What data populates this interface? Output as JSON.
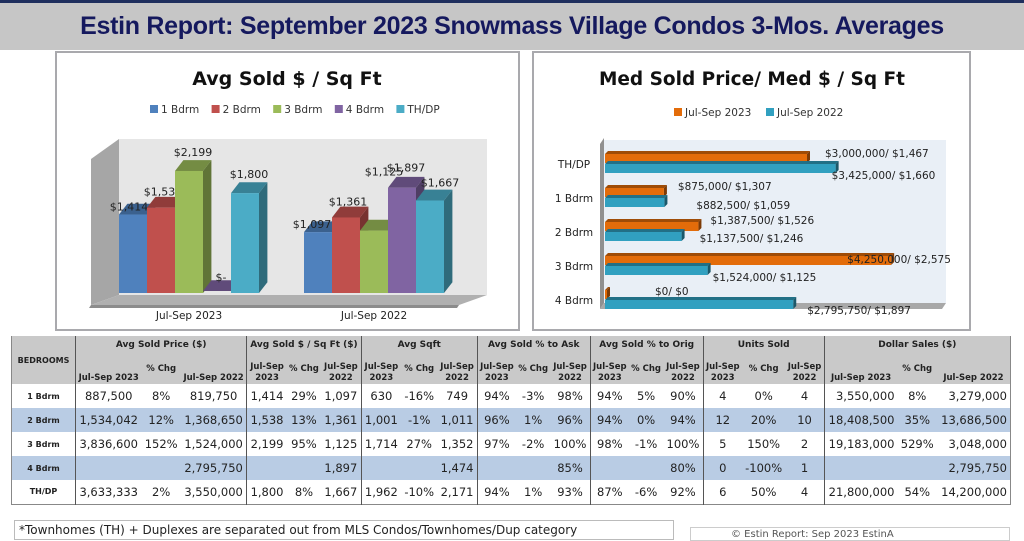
{
  "page": {
    "title": "Estin Report:  September 2023 Snowmass Village Condos 3-Mos. Averages",
    "footnote": "*Townhomes (TH) + Duplexes are separated out from MLS Condos/Townhomes/Dup category",
    "copyright": "© Estin Report: Sep 2023    EstinA"
  },
  "chart_data": [
    {
      "type": "bar",
      "title": "Avg Sold $ / Sq Ft",
      "categories": [
        "Jul-Sep 2023",
        "Jul-Sep 2022"
      ],
      "legend_position": "top",
      "series": [
        {
          "name": "1 Bdrm",
          "color": "#4f81bd",
          "values": [
            1414,
            1097
          ],
          "labels": [
            "$1,414",
            "$1,097"
          ]
        },
        {
          "name": "2 Bdrm",
          "color": "#c0504d",
          "values": [
            1538,
            1361
          ],
          "labels": [
            "$1,538",
            "$1,361"
          ]
        },
        {
          "name": "3 Bdrm",
          "color": "#9bbb59",
          "values": [
            2199,
            1125
          ],
          "labels": [
            "$2,199",
            "$1,125"
          ]
        },
        {
          "name": "4 Bdrm",
          "color": "#8064a2",
          "values": [
            0,
            1897
          ],
          "labels": [
            "$-",
            "$1,897"
          ]
        },
        {
          "name": "TH/DP",
          "color": "#4bacc6",
          "values": [
            1800,
            1667
          ],
          "labels": [
            "$1,800",
            "$1,667"
          ]
        }
      ],
      "ylim": [
        0,
        2200
      ],
      "grid": false
    },
    {
      "type": "bar",
      "orientation": "horizontal",
      "title": "Med Sold Price/ Med $ / Sq Ft",
      "categories": [
        "TH/DP",
        "1 Bdrm",
        "2 Bdrm",
        "3 Bdrm",
        "4 Bdrm"
      ],
      "legend_position": "top",
      "series": [
        {
          "name": "Jul-Sep 2023",
          "color": "#e36c0a",
          "values": [
            3000000,
            875000,
            1387500,
            4250000,
            0
          ],
          "labels": [
            "$3,000,000/ $1,467",
            "$875,000/ $1,307",
            "$1,387,500/ $1,526",
            "$4,250,000/ $2,575",
            "$0/ $0"
          ]
        },
        {
          "name": "Jul-Sep 2022",
          "color": "#31a0c0",
          "values": [
            3425000,
            882500,
            1137500,
            1524000,
            2795750
          ],
          "labels": [
            "$3,425,000/ $1,660",
            "$882,500/ $1,059",
            "$1,137,500/ $1,246",
            "$1,524,000/ $1,125",
            "$2,795,750/ $1,897"
          ]
        }
      ],
      "xlim": [
        0,
        5000000
      ],
      "grid": false
    }
  ],
  "table": {
    "row_header": "BEDROOMS",
    "groups": [
      {
        "label": "Avg Sold Price ($)",
        "subs": [
          "Jul-Sep 2023",
          "% Chg",
          "Jul-Sep 2022"
        ]
      },
      {
        "label": "Avg Sold $ / Sq Ft ($)",
        "subs": [
          "Jul-Sep 2023",
          "% Chg",
          "Jul-Sep 2022"
        ]
      },
      {
        "label": "Avg Sqft",
        "subs": [
          "Jul-Sep 2023",
          "% Chg",
          "Jul-Sep 2022"
        ]
      },
      {
        "label": "Avg Sold % to Ask",
        "subs": [
          "Jul-Sep 2023",
          "% Chg",
          "Jul-Sep 2022"
        ]
      },
      {
        "label": "Avg Sold % to Orig",
        "subs": [
          "Jul-Sep 2023",
          "% Chg",
          "Jul-Sep 2022"
        ]
      },
      {
        "label": "Units Sold",
        "subs": [
          "Jul-Sep 2023",
          "% Chg",
          "Jul-Sep 2022"
        ]
      },
      {
        "label": "Dollar Sales ($)",
        "subs": [
          "Jul-Sep 2023",
          "% Chg",
          "Jul-Sep 2022"
        ]
      }
    ],
    "rows": [
      {
        "label": "1 Bdrm",
        "cells": [
          "887,500",
          "8%",
          "819,750",
          "1,414",
          "29%",
          "1,097",
          "630",
          "-16%",
          "749",
          "94%",
          "-3%",
          "98%",
          "94%",
          "5%",
          "90%",
          "4",
          "0%",
          "4",
          "3,550,000",
          "8%",
          "3,279,000"
        ]
      },
      {
        "label": "2 Bdrm",
        "cells": [
          "1,534,042",
          "12%",
          "1,368,650",
          "1,538",
          "13%",
          "1,361",
          "1,001",
          "-1%",
          "1,011",
          "96%",
          "1%",
          "96%",
          "94%",
          "0%",
          "94%",
          "12",
          "20%",
          "10",
          "18,408,500",
          "35%",
          "13,686,500"
        ]
      },
      {
        "label": "3 Bdrm",
        "cells": [
          "3,836,600",
          "152%",
          "1,524,000",
          "2,199",
          "95%",
          "1,125",
          "1,714",
          "27%",
          "1,352",
          "97%",
          "-2%",
          "100%",
          "98%",
          "-1%",
          "100%",
          "5",
          "150%",
          "2",
          "19,183,000",
          "529%",
          "3,048,000"
        ]
      },
      {
        "label": "4 Bdrm",
        "cells": [
          "",
          "",
          "2,795,750",
          "",
          "",
          "1,897",
          "",
          "",
          "1,474",
          "",
          "",
          "85%",
          "",
          "",
          "80%",
          "0",
          "-100%",
          "1",
          "",
          "",
          "2,795,750"
        ]
      },
      {
        "label": "TH/DP",
        "cells": [
          "3,633,333",
          "2%",
          "3,550,000",
          "1,800",
          "8%",
          "1,667",
          "1,962",
          "-10%",
          "2,171",
          "94%",
          "1%",
          "93%",
          "87%",
          "-6%",
          "92%",
          "6",
          "50%",
          "4",
          "21,800,000",
          "54%",
          "14,200,000"
        ]
      }
    ]
  }
}
